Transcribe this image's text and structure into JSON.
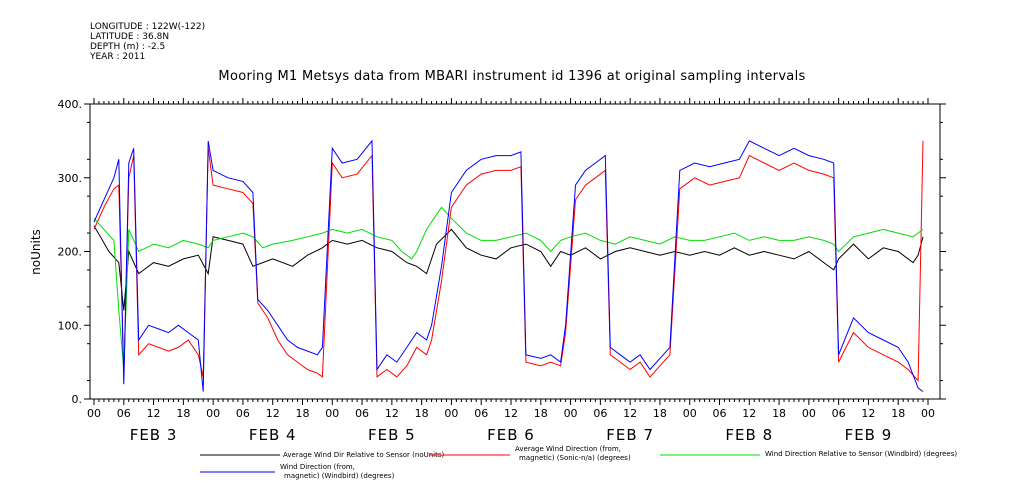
{
  "header": {
    "longitude": "LONGITUDE : 122W(-122)",
    "latitude": "LATITUDE : 36.8N",
    "depth": "DEPTH (m) : -2.5",
    "year": "YEAR : 2011"
  },
  "chart_data": {
    "type": "line",
    "title": "Mooring M1 Metsys data from MBARI instrument id 1396 at original sampling intervals",
    "ylabel": "noUnits",
    "xlabel": "",
    "ylim": [
      0,
      400
    ],
    "yticks": [
      0,
      100,
      200,
      300,
      400
    ],
    "ytick_labels": [
      "0.",
      "100.",
      "200.",
      "300.",
      "400."
    ],
    "hour_tick_labels": [
      "00",
      "06",
      "12",
      "18",
      "00",
      "06",
      "12",
      "18",
      "00",
      "06",
      "12",
      "18",
      "00",
      "06",
      "12",
      "18",
      "00",
      "06",
      "12",
      "18",
      "00",
      "06",
      "12",
      "18",
      "00",
      "06",
      "12",
      "18",
      "00"
    ],
    "day_labels": [
      "FEB  3",
      "FEB  4",
      "FEB  5",
      "FEB  6",
      "FEB  7",
      "FEB  8",
      "FEB  9"
    ],
    "x_unit": "hours since FEB 3 00:00",
    "xlim": [
      0,
      168
    ],
    "series": [
      {
        "name": "Average Wind Dir Relative to Sensor (noUnits)",
        "color": "#000000",
        "points": [
          [
            0,
            235
          ],
          [
            3,
            200
          ],
          [
            5,
            185
          ],
          [
            6,
            120
          ],
          [
            7,
            200
          ],
          [
            9,
            170
          ],
          [
            12,
            185
          ],
          [
            15,
            180
          ],
          [
            18,
            190
          ],
          [
            21,
            195
          ],
          [
            23,
            170
          ],
          [
            24,
            220
          ],
          [
            27,
            215
          ],
          [
            30,
            210
          ],
          [
            32,
            180
          ],
          [
            34,
            185
          ],
          [
            36,
            190
          ],
          [
            40,
            180
          ],
          [
            43,
            195
          ],
          [
            46,
            205
          ],
          [
            48,
            215
          ],
          [
            51,
            210
          ],
          [
            54,
            215
          ],
          [
            57,
            205
          ],
          [
            60,
            200
          ],
          [
            63,
            185
          ],
          [
            65,
            180
          ],
          [
            67,
            170
          ],
          [
            69,
            210
          ],
          [
            72,
            230
          ],
          [
            75,
            205
          ],
          [
            78,
            195
          ],
          [
            81,
            190
          ],
          [
            84,
            205
          ],
          [
            87,
            210
          ],
          [
            90,
            200
          ],
          [
            92,
            180
          ],
          [
            94,
            200
          ],
          [
            96,
            195
          ],
          [
            99,
            205
          ],
          [
            102,
            190
          ],
          [
            105,
            200
          ],
          [
            108,
            205
          ],
          [
            111,
            200
          ],
          [
            114,
            195
          ],
          [
            117,
            200
          ],
          [
            120,
            195
          ],
          [
            123,
            200
          ],
          [
            126,
            195
          ],
          [
            129,
            205
          ],
          [
            132,
            195
          ],
          [
            135,
            200
          ],
          [
            138,
            195
          ],
          [
            141,
            190
          ],
          [
            144,
            200
          ],
          [
            147,
            185
          ],
          [
            149,
            175
          ],
          [
            150,
            190
          ],
          [
            153,
            210
          ],
          [
            156,
            190
          ],
          [
            159,
            205
          ],
          [
            162,
            200
          ],
          [
            165,
            185
          ],
          [
            166,
            195
          ],
          [
            167,
            220
          ]
        ]
      },
      {
        "name": "Average Wind Direction (from, magnetic) (Sonic-n/a) (degrees)",
        "color": "#ff0000",
        "points": [
          [
            0,
            230
          ],
          [
            2,
            260
          ],
          [
            4,
            285
          ],
          [
            5,
            290
          ],
          [
            6,
            30
          ],
          [
            7,
            300
          ],
          [
            8,
            330
          ],
          [
            9,
            60
          ],
          [
            11,
            75
          ],
          [
            13,
            70
          ],
          [
            15,
            65
          ],
          [
            17,
            70
          ],
          [
            19,
            80
          ],
          [
            21,
            60
          ],
          [
            22,
            30
          ],
          [
            23,
            340
          ],
          [
            24,
            290
          ],
          [
            27,
            285
          ],
          [
            30,
            280
          ],
          [
            32,
            265
          ],
          [
            33,
            130
          ],
          [
            35,
            110
          ],
          [
            37,
            80
          ],
          [
            39,
            60
          ],
          [
            41,
            50
          ],
          [
            43,
            40
          ],
          [
            45,
            35
          ],
          [
            46,
            30
          ],
          [
            48,
            320
          ],
          [
            50,
            300
          ],
          [
            53,
            305
          ],
          [
            56,
            330
          ],
          [
            57,
            30
          ],
          [
            59,
            40
          ],
          [
            61,
            30
          ],
          [
            63,
            45
          ],
          [
            65,
            70
          ],
          [
            67,
            60
          ],
          [
            68,
            80
          ],
          [
            70,
            160
          ],
          [
            72,
            260
          ],
          [
            75,
            290
          ],
          [
            78,
            305
          ],
          [
            81,
            310
          ],
          [
            84,
            310
          ],
          [
            86,
            315
          ],
          [
            87,
            50
          ],
          [
            90,
            45
          ],
          [
            92,
            50
          ],
          [
            94,
            45
          ],
          [
            95,
            90
          ],
          [
            97,
            270
          ],
          [
            99,
            290
          ],
          [
            101,
            300
          ],
          [
            103,
            310
          ],
          [
            104,
            60
          ],
          [
            106,
            50
          ],
          [
            108,
            40
          ],
          [
            110,
            50
          ],
          [
            112,
            30
          ],
          [
            114,
            45
          ],
          [
            116,
            60
          ],
          [
            118,
            285
          ],
          [
            121,
            300
          ],
          [
            124,
            290
          ],
          [
            127,
            295
          ],
          [
            130,
            300
          ],
          [
            132,
            330
          ],
          [
            135,
            320
          ],
          [
            138,
            310
          ],
          [
            141,
            320
          ],
          [
            144,
            310
          ],
          [
            147,
            305
          ],
          [
            149,
            300
          ],
          [
            150,
            50
          ],
          [
            153,
            90
          ],
          [
            156,
            70
          ],
          [
            159,
            60
          ],
          [
            162,
            50
          ],
          [
            164,
            40
          ],
          [
            166,
            25
          ],
          [
            167,
            350
          ]
        ]
      },
      {
        "name": "Wind Direction Relative to Sensor (Windbird) (degrees)",
        "color": "#00dd00",
        "points": [
          [
            0,
            245
          ],
          [
            2,
            230
          ],
          [
            4,
            215
          ],
          [
            5,
            120
          ],
          [
            6,
            40
          ],
          [
            7,
            230
          ],
          [
            9,
            200
          ],
          [
            12,
            210
          ],
          [
            15,
            205
          ],
          [
            18,
            215
          ],
          [
            21,
            210
          ],
          [
            23,
            205
          ],
          [
            24,
            215
          ],
          [
            27,
            220
          ],
          [
            30,
            225
          ],
          [
            32,
            220
          ],
          [
            34,
            205
          ],
          [
            36,
            210
          ],
          [
            40,
            215
          ],
          [
            43,
            220
          ],
          [
            46,
            225
          ],
          [
            48,
            230
          ],
          [
            51,
            225
          ],
          [
            54,
            230
          ],
          [
            57,
            220
          ],
          [
            60,
            215
          ],
          [
            62,
            200
          ],
          [
            64,
            190
          ],
          [
            65,
            200
          ],
          [
            67,
            230
          ],
          [
            70,
            260
          ],
          [
            72,
            245
          ],
          [
            75,
            225
          ],
          [
            78,
            215
          ],
          [
            81,
            215
          ],
          [
            84,
            220
          ],
          [
            87,
            225
          ],
          [
            90,
            215
          ],
          [
            92,
            200
          ],
          [
            94,
            215
          ],
          [
            96,
            220
          ],
          [
            99,
            225
          ],
          [
            102,
            215
          ],
          [
            105,
            210
          ],
          [
            108,
            220
          ],
          [
            111,
            215
          ],
          [
            114,
            210
          ],
          [
            117,
            220
          ],
          [
            120,
            215
          ],
          [
            123,
            215
          ],
          [
            126,
            220
          ],
          [
            129,
            225
          ],
          [
            132,
            215
          ],
          [
            135,
            220
          ],
          [
            138,
            215
          ],
          [
            141,
            215
          ],
          [
            144,
            220
          ],
          [
            147,
            215
          ],
          [
            149,
            210
          ],
          [
            150,
            200
          ],
          [
            153,
            220
          ],
          [
            156,
            225
          ],
          [
            159,
            230
          ],
          [
            162,
            225
          ],
          [
            165,
            220
          ],
          [
            167,
            230
          ]
        ]
      },
      {
        "name": "Wind Direction (from, magnetic) (Windbird) (degrees)",
        "color": "#0000ff",
        "points": [
          [
            0,
            240
          ],
          [
            2,
            270
          ],
          [
            4,
            300
          ],
          [
            5,
            325
          ],
          [
            6,
            20
          ],
          [
            7,
            320
          ],
          [
            8,
            340
          ],
          [
            9,
            80
          ],
          [
            11,
            100
          ],
          [
            13,
            95
          ],
          [
            15,
            90
          ],
          [
            17,
            100
          ],
          [
            19,
            90
          ],
          [
            21,
            80
          ],
          [
            22,
            10
          ],
          [
            23,
            350
          ],
          [
            24,
            310
          ],
          [
            27,
            300
          ],
          [
            30,
            295
          ],
          [
            32,
            280
          ],
          [
            33,
            135
          ],
          [
            35,
            120
          ],
          [
            37,
            100
          ],
          [
            39,
            80
          ],
          [
            41,
            70
          ],
          [
            43,
            65
          ],
          [
            45,
            60
          ],
          [
            46,
            70
          ],
          [
            48,
            340
          ],
          [
            50,
            320
          ],
          [
            53,
            325
          ],
          [
            56,
            350
          ],
          [
            57,
            40
          ],
          [
            59,
            60
          ],
          [
            61,
            50
          ],
          [
            63,
            70
          ],
          [
            65,
            90
          ],
          [
            67,
            80
          ],
          [
            68,
            100
          ],
          [
            70,
            180
          ],
          [
            72,
            280
          ],
          [
            75,
            310
          ],
          [
            78,
            325
          ],
          [
            81,
            330
          ],
          [
            84,
            330
          ],
          [
            86,
            335
          ],
          [
            87,
            60
          ],
          [
            90,
            55
          ],
          [
            92,
            60
          ],
          [
            94,
            50
          ],
          [
            95,
            100
          ],
          [
            97,
            290
          ],
          [
            99,
            310
          ],
          [
            101,
            320
          ],
          [
            103,
            330
          ],
          [
            104,
            70
          ],
          [
            106,
            60
          ],
          [
            108,
            50
          ],
          [
            110,
            60
          ],
          [
            112,
            40
          ],
          [
            114,
            55
          ],
          [
            116,
            70
          ],
          [
            118,
            310
          ],
          [
            121,
            320
          ],
          [
            124,
            315
          ],
          [
            127,
            320
          ],
          [
            130,
            325
          ],
          [
            132,
            350
          ],
          [
            135,
            340
          ],
          [
            138,
            330
          ],
          [
            141,
            340
          ],
          [
            144,
            330
          ],
          [
            147,
            325
          ],
          [
            149,
            320
          ],
          [
            150,
            60
          ],
          [
            153,
            110
          ],
          [
            156,
            90
          ],
          [
            159,
            80
          ],
          [
            162,
            70
          ],
          [
            164,
            50
          ],
          [
            166,
            15
          ],
          [
            167,
            10
          ]
        ]
      }
    ],
    "legend": [
      {
        "label": "Average Wind Dir Relative to Sensor (noUnits)",
        "color": "#000000"
      },
      {
        "label": "Average Wind Direction (from,\n magnetic) (Sonic-n/a) (degrees)",
        "color": "#ff0000"
      },
      {
        "label": "Wind Direction Relative to Sensor (Windbird) (degrees)",
        "color": "#00dd00"
      },
      {
        "label": "Wind Direction (from,\n magnetic) (Windbird) (degrees)",
        "color": "#0000ff"
      }
    ],
    "grid": false,
    "legend_position": "bottom"
  }
}
